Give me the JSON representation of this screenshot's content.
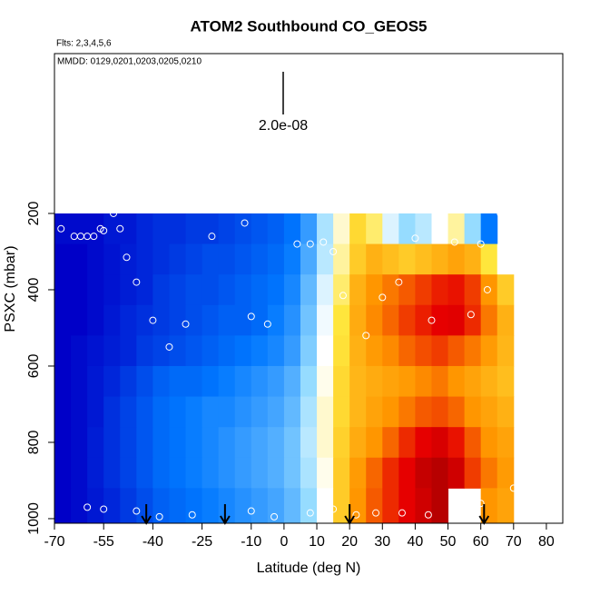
{
  "chart_data": {
    "type": "heatmap",
    "title": "ATOM2 Southbound CO_GEOS5",
    "subtitle": "Flts: 2,3,4,5,6",
    "annotation": "MMDD: 0129,0201,0203,0205,0210",
    "scale_label": "2.0e-08",
    "x_label": "Latitude (deg N)",
    "y_label": "PSXC (mbar)",
    "xlim": [
      -70,
      85
    ],
    "ylim": [
      1012,
      -219
    ],
    "xticks": [
      -70,
      -55,
      -40,
      -25,
      -10,
      0,
      10,
      20,
      30,
      40,
      50,
      60,
      70,
      80
    ],
    "yticks": [
      200,
      400,
      600,
      800,
      1000
    ],
    "lat_edges": [
      -70,
      -65,
      -60,
      -55,
      -50,
      -45,
      -40,
      -35,
      -30,
      -25,
      -20,
      -15,
      -10,
      -5,
      0,
      5,
      10,
      15,
      20,
      25,
      30,
      35,
      40,
      45,
      50,
      55,
      60,
      65,
      70
    ],
    "pressure_edges": [
      200,
      280,
      360,
      440,
      520,
      600,
      680,
      760,
      840,
      920,
      1010
    ],
    "z": [
      [
        52,
        52,
        52,
        55,
        55,
        58,
        60,
        60,
        62,
        62,
        64,
        66,
        68,
        70,
        74,
        82,
        98,
        115,
        135,
        125,
        105,
        95,
        100,
        110,
        120,
        95,
        75,
        null
      ],
      [
        50,
        50,
        52,
        54,
        56,
        58,
        60,
        62,
        64,
        66,
        66,
        68,
        70,
        72,
        76,
        85,
        100,
        120,
        140,
        150,
        145,
        140,
        145,
        150,
        155,
        150,
        130,
        110
      ],
      [
        48,
        50,
        52,
        54,
        56,
        58,
        62,
        64,
        66,
        66,
        68,
        70,
        72,
        74,
        78,
        88,
        105,
        125,
        150,
        160,
        165,
        170,
        175,
        180,
        182,
        175,
        160,
        140
      ],
      [
        48,
        50,
        52,
        55,
        58,
        60,
        62,
        64,
        66,
        68,
        70,
        70,
        72,
        76,
        80,
        90,
        108,
        130,
        152,
        162,
        168,
        175,
        180,
        185,
        186,
        178,
        165,
        150
      ],
      [
        50,
        52,
        54,
        56,
        58,
        62,
        64,
        66,
        68,
        70,
        72,
        74,
        76,
        78,
        82,
        92,
        110,
        132,
        150,
        158,
        162,
        168,
        172,
        175,
        170,
        165,
        158,
        148
      ],
      [
        50,
        52,
        55,
        58,
        62,
        66,
        70,
        72,
        72,
        74,
        76,
        78,
        80,
        82,
        86,
        95,
        112,
        135,
        148,
        152,
        155,
        158,
        162,
        165,
        160,
        155,
        150,
        145
      ],
      [
        50,
        52,
        55,
        60,
        64,
        68,
        72,
        74,
        76,
        78,
        78,
        80,
        82,
        84,
        88,
        98,
        115,
        135,
        148,
        155,
        160,
        165,
        170,
        172,
        168,
        160,
        155,
        150
      ],
      [
        50,
        52,
        56,
        60,
        64,
        68,
        72,
        74,
        76,
        78,
        80,
        82,
        84,
        86,
        90,
        100,
        115,
        138,
        152,
        160,
        168,
        178,
        185,
        188,
        182,
        170,
        160,
        155
      ],
      [
        50,
        52,
        56,
        60,
        64,
        68,
        72,
        74,
        76,
        78,
        80,
        82,
        84,
        86,
        90,
        98,
        112,
        140,
        158,
        168,
        178,
        185,
        192,
        195,
        190,
        175,
        165,
        158
      ],
      [
        50,
        52,
        55,
        58,
        62,
        66,
        70,
        72,
        74,
        76,
        78,
        80,
        82,
        84,
        88,
        95,
        110,
        140,
        160,
        170,
        178,
        185,
        190,
        195,
        null,
        null,
        160,
        155
      ]
    ],
    "points": {
      "lat": [
        -68,
        -64,
        -62,
        -60,
        -58,
        -56,
        -55,
        -52,
        -50,
        -48,
        -45,
        -40,
        -35,
        -30,
        -22,
        -12,
        -10,
        -5,
        4,
        8,
        12,
        15,
        18,
        25,
        30,
        35,
        40,
        45,
        52,
        57,
        60,
        62,
        66,
        -60,
        -55,
        -45,
        -38,
        -28,
        -10,
        -3,
        8,
        15,
        22,
        28,
        36,
        44,
        52,
        60,
        70
      ],
      "p": [
        240,
        260,
        260,
        260,
        260,
        240,
        245,
        200,
        240,
        315,
        380,
        480,
        550,
        490,
        260,
        225,
        470,
        490,
        280,
        280,
        275,
        300,
        415,
        520,
        420,
        380,
        265,
        480,
        275,
        465,
        280,
        400,
        200,
        970,
        975,
        980,
        995,
        990,
        980,
        995,
        985,
        975,
        990,
        985,
        985,
        990,
        1000,
        960,
        920
      ]
    },
    "arrows": [
      -42,
      -18,
      20,
      61
    ],
    "colormap": [
      [
        50,
        "#0000c8"
      ],
      [
        75,
        "#0078ff"
      ],
      [
        95,
        "#96dcff"
      ],
      [
        110,
        "#ffffff"
      ],
      [
        130,
        "#ffe63c"
      ],
      [
        160,
        "#ff9600"
      ],
      [
        185,
        "#e60000"
      ],
      [
        200,
        "#a00000"
      ]
    ]
  }
}
